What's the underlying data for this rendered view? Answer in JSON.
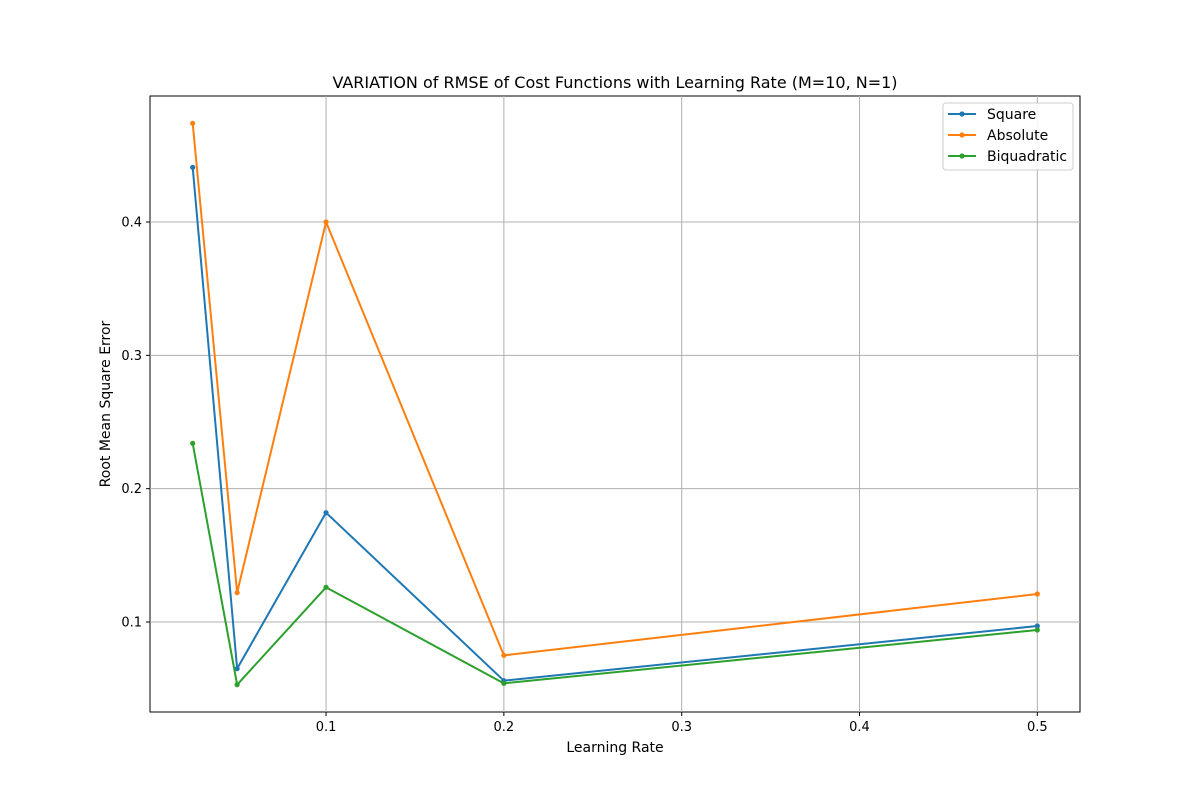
{
  "chart_data": {
    "type": "line",
    "title": "VARIATION of RMSE of Cost Functions with Learning Rate (M=10, N=1)",
    "xlabel": "Learning Rate",
    "ylabel": "Root Mean Square Error",
    "x": [
      0.025,
      0.05,
      0.1,
      0.2,
      0.5
    ],
    "xlim": [
      0.001,
      0.524
    ],
    "ylim": [
      0.0325,
      0.4945
    ],
    "xticks": [
      0.1,
      0.2,
      0.3,
      0.4,
      0.5
    ],
    "yticks": [
      0.1,
      0.2,
      0.3,
      0.4
    ],
    "grid": true,
    "legend_position": "top-right",
    "series": [
      {
        "name": "Square",
        "color": "#1f77b4",
        "values": [
          0.441,
          0.065,
          0.182,
          0.056,
          0.097
        ]
      },
      {
        "name": "Absolute",
        "color": "#ff7f0e",
        "values": [
          0.474,
          0.122,
          0.4,
          0.075,
          0.121
        ]
      },
      {
        "name": "Biquadratic",
        "color": "#2ca02c",
        "values": [
          0.234,
          0.053,
          0.126,
          0.054,
          0.094
        ]
      }
    ]
  }
}
